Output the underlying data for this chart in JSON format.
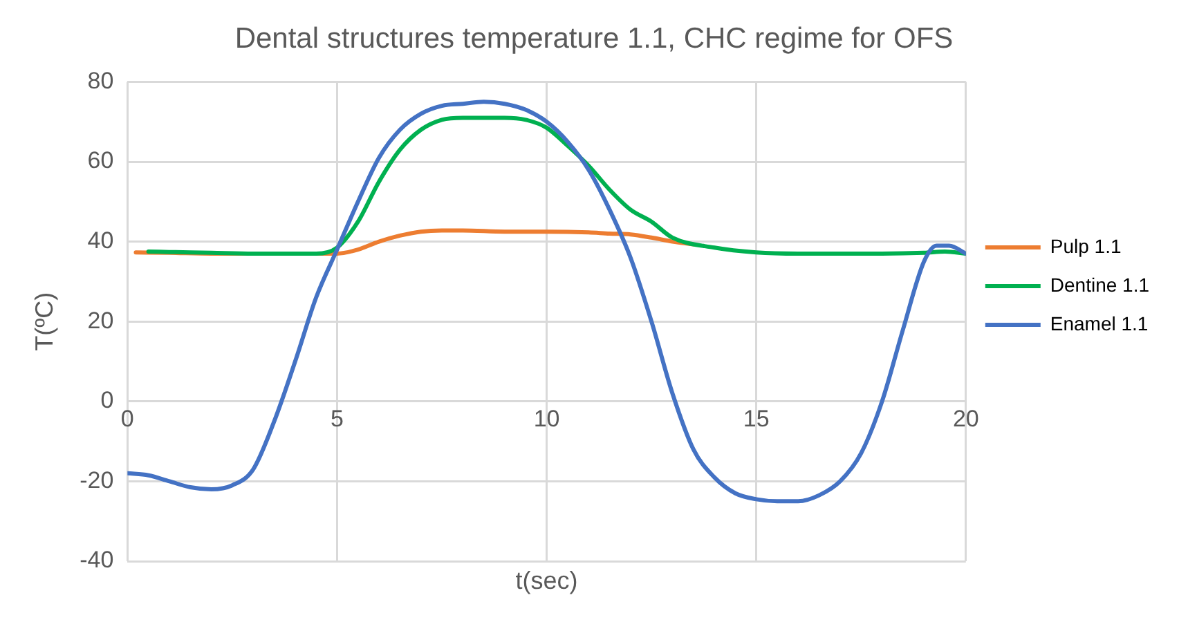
{
  "chart_data": {
    "type": "line",
    "title": "Dental structures temperature 1.1, CHC regime for OFS",
    "xlabel": "t(sec)",
    "ylabel": "T(ºC)",
    "xlim": [
      0,
      20
    ],
    "xticks": [
      0,
      5,
      10,
      15,
      20
    ],
    "ylim": [
      -40,
      80
    ],
    "yticks": [
      -40,
      -20,
      0,
      20,
      40,
      60,
      80
    ],
    "grid": true,
    "legend": "right",
    "marker": "none",
    "line_style": "solid",
    "series": [
      {
        "name": "Pulp 1.1",
        "color": "#ed7d31",
        "x": [
          0.2,
          1,
          2,
          3,
          4,
          4.5,
          5,
          5.5,
          6,
          6.5,
          7,
          7.5,
          8,
          9,
          10,
          11,
          11.5,
          12,
          12.5,
          13,
          13.5
        ],
        "values": [
          37.3,
          37.2,
          37,
          37,
          37,
          37,
          37,
          38,
          40,
          41.5,
          42.5,
          42.8,
          42.8,
          42.5,
          42.5,
          42.3,
          42,
          41.8,
          41,
          40,
          39.3
        ]
      },
      {
        "name": "Dentine 1.1",
        "color": "#00b050",
        "x": [
          0.5,
          1,
          2,
          3,
          4,
          4.5,
          5,
          5.5,
          6,
          6.5,
          7,
          7.5,
          8,
          9,
          9.5,
          10,
          10.5,
          11,
          11.5,
          12,
          12.5,
          13,
          14,
          15,
          16,
          17,
          18,
          19,
          19.5,
          20
        ],
        "values": [
          37.5,
          37.4,
          37.2,
          37,
          37,
          37,
          38.5,
          45,
          55,
          63,
          68,
          70.5,
          71,
          71,
          70.5,
          68.5,
          64,
          59,
          53,
          48,
          45,
          41,
          38.5,
          37.3,
          37,
          37,
          37,
          37.2,
          37.5,
          37
        ]
      },
      {
        "name": "Enamel 1.1",
        "color": "#4472c4",
        "x": [
          0,
          0.5,
          1,
          1.5,
          2,
          2.5,
          3,
          3.5,
          4,
          4.5,
          5,
          5.5,
          6,
          6.5,
          7,
          7.5,
          8,
          8.5,
          9,
          9.5,
          10,
          10.5,
          11,
          11.5,
          12,
          12.5,
          13,
          13.5,
          14,
          14.5,
          15,
          15.5,
          16,
          16.5,
          17,
          17.5,
          18,
          18.5,
          19,
          19.3,
          19.6,
          20
        ],
        "values": [
          -18,
          -18.5,
          -20,
          -21.5,
          -22,
          -21,
          -17,
          -5,
          10,
          26,
          38,
          50,
          61,
          68,
          72,
          74,
          74.5,
          75,
          74.5,
          73,
          70,
          65,
          58,
          48,
          36,
          20,
          2,
          -12,
          -19,
          -23,
          -24.5,
          -25,
          -25,
          -23.5,
          -20,
          -13,
          0,
          18,
          35,
          39,
          39,
          37
        ]
      }
    ]
  }
}
